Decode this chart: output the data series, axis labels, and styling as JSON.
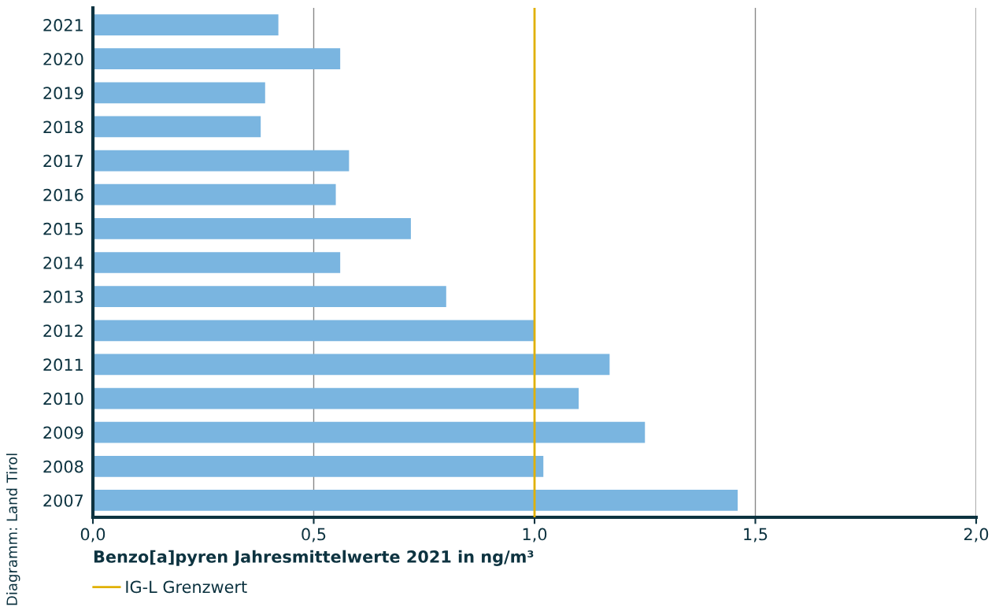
{
  "chart_data": {
    "type": "bar",
    "orientation": "horizontal",
    "xlabel": "Benzo[a]pyren Jahresmittelwerte 2021 in ng/m³",
    "categories": [
      "2021",
      "2020",
      "2019",
      "2018",
      "2017",
      "2016",
      "2015",
      "2014",
      "2013",
      "2012",
      "2011",
      "2010",
      "2009",
      "2008",
      "2007"
    ],
    "values": [
      0.42,
      0.56,
      0.39,
      0.38,
      0.58,
      0.55,
      0.72,
      0.56,
      0.8,
      1.0,
      1.17,
      1.1,
      1.25,
      1.02,
      1.46
    ],
    "color": "#7ab5e0",
    "xlim": [
      0,
      2.0
    ],
    "xticks": [
      {
        "value": 0,
        "label": "0,0"
      },
      {
        "value": 0.5,
        "label": "0,5"
      },
      {
        "value": 1.0,
        "label": "1,0"
      },
      {
        "value": 1.5,
        "label": "1,5"
      },
      {
        "value": 2.0,
        "label": "2,0"
      }
    ],
    "grid": "x",
    "ref_lines": [
      {
        "axis": "x",
        "value": 1.0,
        "label": "IG-L Grenzwert",
        "color": "#e0b000"
      }
    ],
    "legend": "bottom left",
    "annotations": [
      "Diagramm: Land Tirol"
    ]
  }
}
